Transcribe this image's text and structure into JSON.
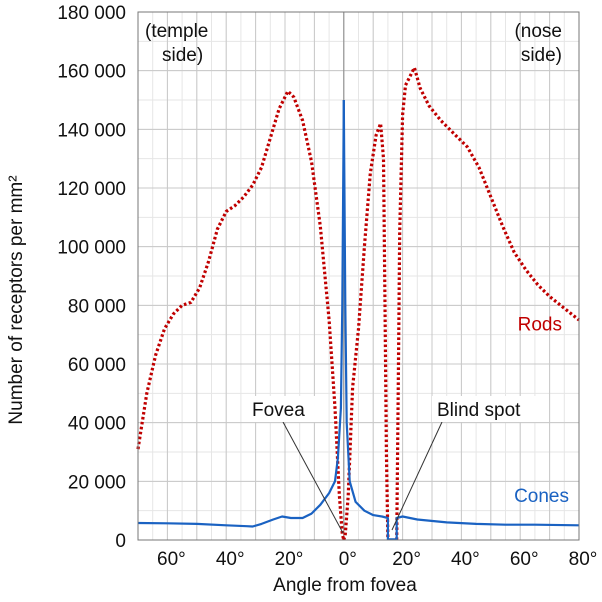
{
  "chart_data": {
    "type": "line",
    "title": "",
    "xlabel": "Angle from fovea",
    "ylabel": "Number of receptors per mm²",
    "xlim": [
      -70,
      80
    ],
    "ylim": [
      0,
      180000
    ],
    "grid": true,
    "x_tick_labels": [
      "60°",
      "40°",
      "20°",
      "0°",
      "20°",
      "40°",
      "60°",
      "80°"
    ],
    "x_tick_values": [
      -60,
      -40,
      -20,
      0,
      20,
      40,
      60,
      80
    ],
    "y_tick_labels": [
      "0",
      "20 000",
      "40 000",
      "60 000",
      "80 000",
      "100 000",
      "120 000",
      "140 000",
      "160 000",
      "180 000"
    ],
    "y_tick_values": [
      0,
      20000,
      40000,
      60000,
      80000,
      100000,
      120000,
      140000,
      160000,
      180000
    ],
    "annotations": {
      "temple_line1": "(temple",
      "temple_line2": "side)",
      "nose_line1": "(nose",
      "nose_line2": "side)",
      "fovea": "Fovea",
      "blind_spot": "Blind spot"
    },
    "series": [
      {
        "name": "Rods",
        "color": "#c00000",
        "style": "dotted",
        "segments": [
          [
            [
              -70,
              31000
            ],
            [
              -67,
              50000
            ],
            [
              -64,
              63000
            ],
            [
              -61,
              72000
            ],
            [
              -58,
              77000
            ],
            [
              -55,
              80000
            ],
            [
              -52,
              81000
            ],
            [
              -49,
              86000
            ],
            [
              -46,
              95000
            ],
            [
              -43,
              106000
            ],
            [
              -40,
              112000
            ],
            [
              -37,
              114000
            ],
            [
              -34,
              117000
            ],
            [
              -31,
              121000
            ],
            [
              -28,
              127000
            ],
            [
              -25,
              137000
            ],
            [
              -22,
              147000
            ],
            [
              -19,
              153000
            ],
            [
              -17,
              151000
            ],
            [
              -14,
              143000
            ],
            [
              -11,
              129000
            ],
            [
              -8,
              107000
            ],
            [
              -5,
              75000
            ],
            [
              -3,
              45000
            ],
            [
              -1.5,
              15000
            ],
            [
              -0.5,
              2000
            ],
            [
              0,
              0
            ]
          ],
          [
            [
              0,
              0
            ],
            [
              0.5,
              2000
            ],
            [
              1.5,
              15000
            ],
            [
              3,
              52000
            ],
            [
              5,
              72000
            ],
            [
              7,
              100000
            ],
            [
              9,
              125000
            ],
            [
              11,
              138000
            ],
            [
              12.5,
              142000
            ],
            [
              13.5,
              130000
            ],
            [
              14,
              80000
            ],
            [
              14.5,
              30000
            ],
            [
              15,
              0
            ]
          ],
          [
            [
              18,
              0
            ],
            [
              18.5,
              50000
            ],
            [
              19,
              105000
            ],
            [
              20,
              145000
            ],
            [
              21,
              155000
            ],
            [
              23,
              159000
            ],
            [
              24,
              161000
            ],
            [
              26,
              154000
            ],
            [
              29,
              148000
            ],
            [
              33,
              143000
            ],
            [
              38,
              138000
            ],
            [
              42,
              134000
            ],
            [
              46,
              127000
            ],
            [
              50,
              117000
            ],
            [
              54,
              107000
            ],
            [
              58,
              98000
            ],
            [
              62,
              92000
            ],
            [
              66,
              87000
            ],
            [
              70,
              83000
            ],
            [
              75,
              79000
            ],
            [
              80,
              75000
            ]
          ]
        ]
      },
      {
        "name": "Cones",
        "color": "#1a62c2",
        "style": "solid",
        "segments": [
          [
            [
              -70,
              5800
            ],
            [
              -60,
              5700
            ],
            [
              -50,
              5500
            ],
            [
              -40,
              5000
            ],
            [
              -33,
              4700
            ],
            [
              -31,
              4600
            ],
            [
              -28,
              5500
            ],
            [
              -24,
              7000
            ],
            [
              -21,
              8000
            ],
            [
              -18,
              7500
            ],
            [
              -14,
              7500
            ],
            [
              -11,
              9000
            ],
            [
              -8,
              12000
            ],
            [
              -5,
              16000
            ],
            [
              -3,
              20000
            ],
            [
              -2,
              28000
            ],
            [
              -1,
              45000
            ],
            [
              -0.5,
              80000
            ],
            [
              -0.15,
              130000
            ],
            [
              0,
              150000
            ]
          ],
          [
            [
              0,
              150000
            ],
            [
              0.15,
              130000
            ],
            [
              0.5,
              80000
            ],
            [
              1,
              40000
            ],
            [
              2,
              20000
            ],
            [
              4,
              13000
            ],
            [
              7,
              10000
            ],
            [
              10,
              8500
            ],
            [
              13,
              8000
            ],
            [
              15,
              7500
            ],
            [
              15,
              200
            ],
            [
              18,
              200
            ],
            [
              18,
              7500
            ],
            [
              20,
              8000
            ],
            [
              25,
              7000
            ],
            [
              35,
              6000
            ],
            [
              45,
              5500
            ],
            [
              55,
              5200
            ],
            [
              65,
              5200
            ],
            [
              80,
              5000
            ]
          ]
        ]
      }
    ]
  }
}
